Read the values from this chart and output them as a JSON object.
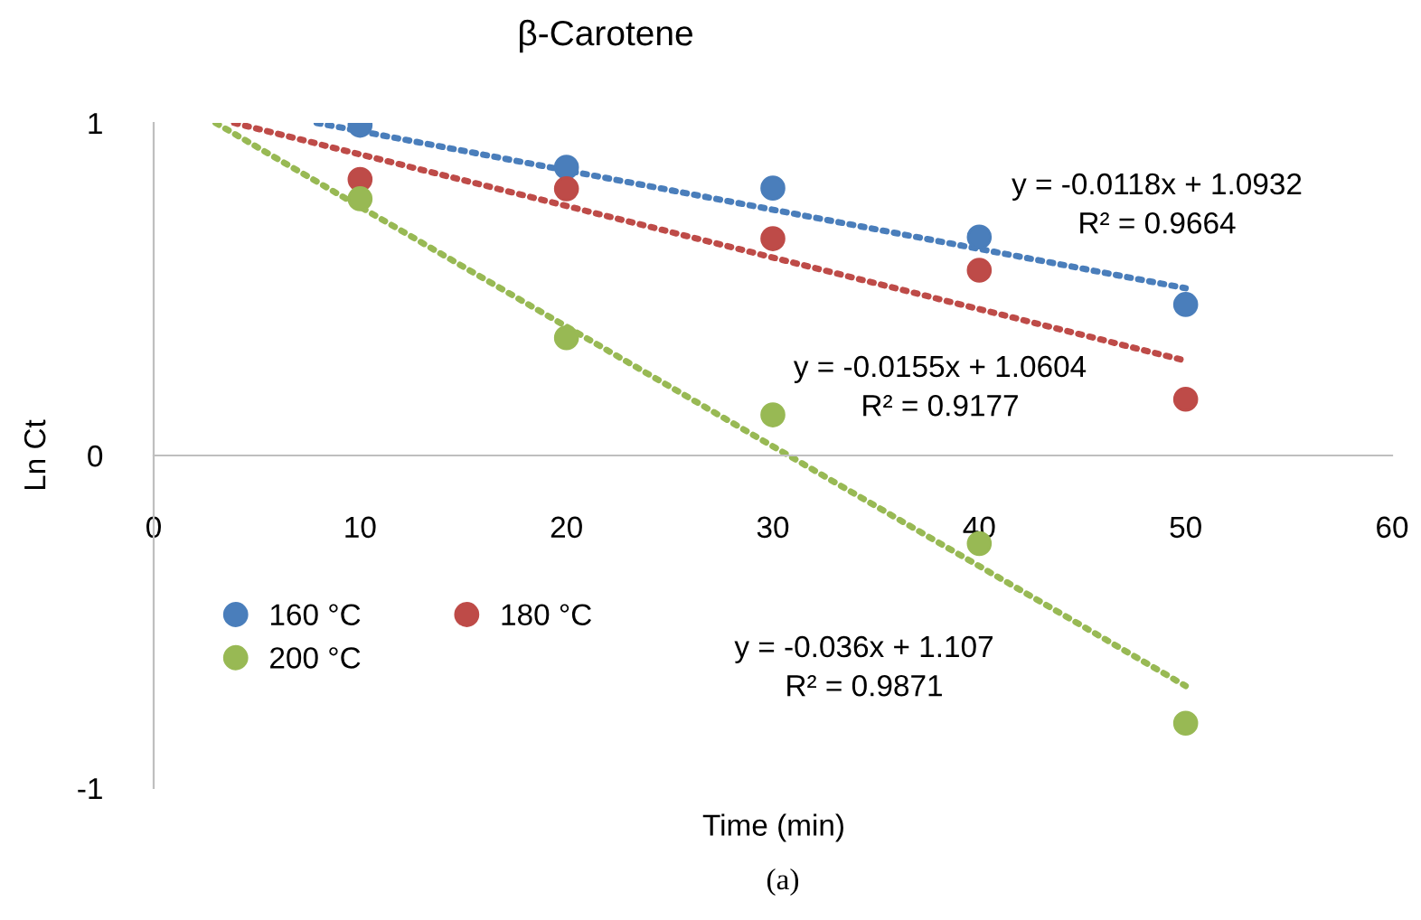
{
  "chart_data": {
    "type": "scatter",
    "title": "β-Carotene",
    "xlabel": "Time (min)",
    "ylabel": "Ln Ct",
    "x": [
      10,
      20,
      30,
      40,
      50
    ],
    "series": [
      {
        "name": "160 °C",
        "color": "#4a7ebb",
        "values": [
          0.993,
          0.867,
          0.804,
          0.657,
          0.454
        ]
      },
      {
        "name": "180 °C",
        "color": "#be4b48",
        "values": [
          0.83,
          0.802,
          0.652,
          0.557,
          0.169
        ]
      },
      {
        "name": "200 °C",
        "color": "#98b954",
        "values": [
          0.772,
          0.354,
          0.122,
          -0.265,
          -0.805
        ]
      },
      {
        "type": "line",
        "line_style": "dotted",
        "marker": "none",
        "color": "#4a7ebb",
        "x": [
          7.9,
          50
        ],
        "values": [
          1,
          0.503
        ]
      },
      {
        "type": "line",
        "line_style": "dotted",
        "marker": "none",
        "color": "#be4b48",
        "x": [
          3.9,
          50
        ],
        "values": [
          1,
          0.285
        ]
      },
      {
        "type": "line",
        "line_style": "dotted",
        "marker": "none",
        "color": "#98b954",
        "x": [
          3,
          50
        ],
        "values": [
          1,
          -0.693
        ]
      }
    ],
    "marker": "circle",
    "xlim": [
      0,
      60
    ],
    "xticks": [
      0,
      10,
      20,
      30,
      40,
      50,
      60
    ],
    "ylim": [
      -1,
      1
    ],
    "yticks": [
      -1,
      0,
      1
    ],
    "grid": false,
    "legend": "bottom left",
    "annotations": [
      "y = -0.0118x + 1.0932\nR² = 0.9664",
      "y = -0.0155x + 1.0604\nR² = 0.9177",
      "y = -0.036x + 1.107\nR² = 0.9871",
      "(a)"
    ]
  }
}
